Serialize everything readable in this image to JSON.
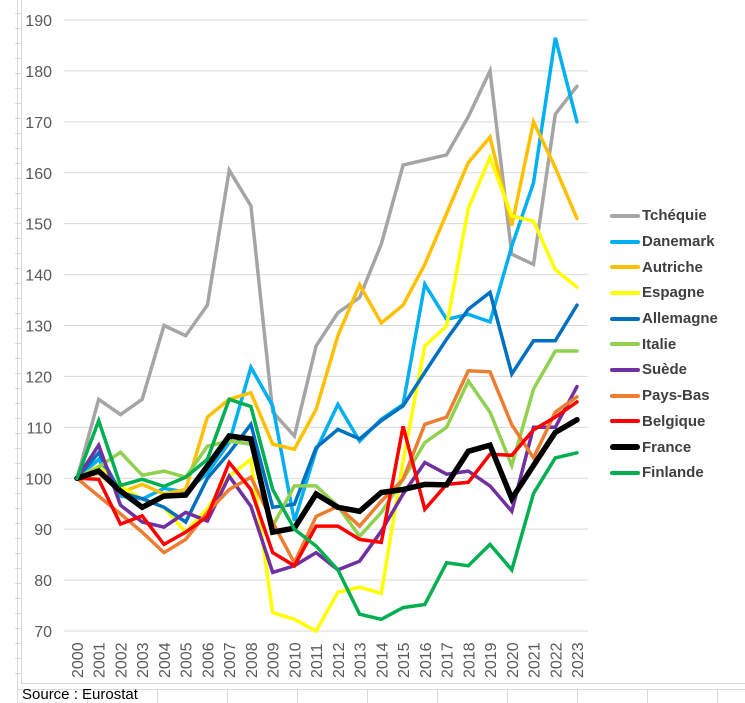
{
  "chart_data": {
    "type": "line",
    "title": "",
    "xlabel": "",
    "ylabel": "",
    "ylim": [
      70,
      190
    ],
    "yticks": [
      "70",
      "80",
      "90",
      "100",
      "110",
      "120",
      "130",
      "140",
      "150",
      "160",
      "170",
      "180",
      "190"
    ],
    "grid": true,
    "legend_position": "right",
    "x": [
      "2000",
      "2001",
      "2002",
      "2003",
      "2004",
      "2005",
      "2006",
      "2007",
      "2008",
      "2009",
      "2010",
      "2011",
      "2012",
      "2013",
      "2014",
      "2015",
      "2016",
      "2017",
      "2018",
      "2019",
      "2020",
      "2021",
      "2022",
      "2023"
    ],
    "series": [
      {
        "name": "Tchéquie",
        "color": "#A5A5A5",
        "values": [
          100,
          115.5,
          112.5,
          115.5,
          130,
          128,
          134,
          160.5,
          153.5,
          113,
          108.3,
          126,
          132.5,
          135.5,
          146,
          161.5,
          162.5,
          163.5,
          171,
          180,
          144,
          142,
          171.5,
          177
        ]
      },
      {
        "name": "Danemark",
        "color": "#00B0F0",
        "values": [
          100,
          103.7,
          96.5,
          95.9,
          98,
          97.3,
          101,
          107,
          121.8,
          114.2,
          91.6,
          105.5,
          114.5,
          107.3,
          111.6,
          114.5,
          138.1,
          131.2,
          132.2,
          130.7,
          145.6,
          158,
          186.5,
          170
        ]
      },
      {
        "name": "Autriche",
        "color": "#FFC000",
        "values": [
          100,
          101,
          97.2,
          98.8,
          96.9,
          97.8,
          112,
          115.5,
          116.8,
          106.7,
          105.7,
          113.5,
          128,
          138,
          130.5,
          134,
          142,
          152,
          162,
          167,
          149.6,
          170,
          161,
          151
        ]
      },
      {
        "name": "Espagne",
        "color": "#FFFF00",
        "values": [
          100,
          102.4,
          98.4,
          95.9,
          94.3,
          89.4,
          94,
          100.4,
          103.7,
          73.6,
          72.3,
          70,
          77.6,
          78.6,
          77.4,
          103.4,
          126,
          129.9,
          153,
          163,
          151.5,
          150.5,
          141,
          137.5
        ]
      },
      {
        "name": "Allemagne",
        "color": "#0070C0",
        "values": [
          100,
          105,
          97.2,
          96,
          94.3,
          91.4,
          100,
          105,
          110.6,
          94.3,
          94.9,
          106,
          109.6,
          107.7,
          111.3,
          114.2,
          120.8,
          127.3,
          133.2,
          136.5,
          120.5,
          127,
          127,
          134
        ]
      },
      {
        "name": "Italie",
        "color": "#92D050",
        "values": [
          100,
          102.2,
          105.1,
          100.6,
          101.4,
          100.2,
          106.3,
          107.3,
          106.7,
          90.6,
          98.5,
          98.5,
          94.5,
          88.6,
          93.3,
          99.8,
          107,
          110,
          119.1,
          113,
          102.5,
          117.5,
          125,
          125
        ]
      },
      {
        "name": "Suède",
        "color": "#7030A0",
        "values": [
          100,
          106.5,
          94.7,
          91.4,
          90.4,
          93.3,
          91.6,
          100.4,
          94.5,
          81.5,
          82.8,
          85.4,
          82,
          83.7,
          89.6,
          96.9,
          103.1,
          100.8,
          101.4,
          98.5,
          93.5,
          110,
          110,
          118
        ]
      },
      {
        "name": "Pays-Bas",
        "color": "#ED7D31",
        "values": [
          100,
          96.5,
          93,
          89.4,
          85.4,
          88,
          93.3,
          97.8,
          100.2,
          91.3,
          83.4,
          92.5,
          94.5,
          90.6,
          95.5,
          99.8,
          110.6,
          112,
          121.1,
          120.9,
          110.5,
          104,
          113,
          116
        ]
      },
      {
        "name": "Belgique",
        "color": "#FF0000",
        "values": [
          100,
          99.8,
          91,
          92.6,
          87,
          89.4,
          92.5,
          103.1,
          97.8,
          85.4,
          82.8,
          90.6,
          90.6,
          88,
          87.4,
          110.2,
          93.9,
          98.8,
          99.2,
          104.7,
          104.5,
          109.5,
          112,
          115
        ]
      },
      {
        "name": "France",
        "color": "#000000",
        "values": [
          100,
          101.4,
          97.5,
          94.3,
          96.5,
          96.7,
          102.4,
          108.3,
          107.7,
          89.4,
          90.2,
          96.9,
          94.3,
          93.5,
          97.2,
          97.8,
          98.8,
          98.7,
          105.3,
          106.5,
          96,
          102.5,
          109,
          111.5
        ]
      },
      {
        "name": "Finlande",
        "color": "#00B050",
        "values": [
          100,
          111.3,
          98.6,
          99.8,
          98.4,
          100.2,
          103.7,
          115.5,
          114.1,
          97.8,
          90,
          86.7,
          82,
          73.3,
          72.3,
          74.6,
          75.2,
          83.4,
          82.8,
          87,
          82,
          97,
          104,
          105
        ]
      }
    ]
  },
  "source": "Source : Eurostat"
}
